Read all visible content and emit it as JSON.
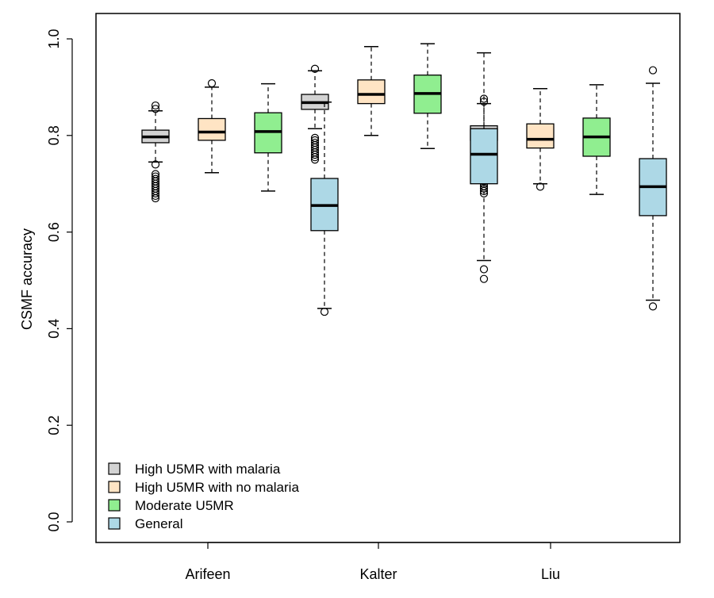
{
  "chart_data": {
    "type": "boxplot",
    "title": "",
    "xlabel": "",
    "ylabel": "CSMF accuracy",
    "ylim": [
      -0.04,
      1.04
    ],
    "yticks": [
      "0.0",
      "0.2",
      "0.4",
      "0.6",
      "0.8",
      "1.0"
    ],
    "categories": [
      "Arifeen",
      "Kalter",
      "Liu"
    ],
    "series": [
      {
        "name": "High U5MR with malaria",
        "color": "#d3d3d3",
        "boxes": [
          {
            "whisker_low": 0.745,
            "q1": 0.785,
            "median": 0.797,
            "q3": 0.811,
            "whisker_high": 0.851,
            "outliers": [
              0.67,
              0.675,
              0.68,
              0.685,
              0.69,
              0.695,
              0.7,
              0.705,
              0.71,
              0.715,
              0.72,
              0.74,
              0.855,
              0.862
            ]
          },
          {
            "whisker_low": 0.814,
            "q1": 0.854,
            "median": 0.868,
            "q3": 0.885,
            "whisker_high": 0.934,
            "outliers": [
              0.75,
              0.755,
              0.76,
              0.765,
              0.77,
              0.775,
              0.78,
              0.785,
              0.79,
              0.795,
              0.938
            ]
          },
          {
            "whisker_low": 0.747,
            "q1": 0.79,
            "median": 0.805,
            "q3": 0.82,
            "whisker_high": 0.866,
            "outliers": [
              0.68,
              0.685,
              0.69,
              0.695,
              0.7,
              0.705,
              0.71,
              0.715,
              0.72,
              0.73,
              0.74,
              0.87,
              0.876
            ]
          }
        ]
      },
      {
        "name": "High U5MR with no malaria",
        "color": "#ffe4c4",
        "boxes": [
          {
            "whisker_low": 0.723,
            "q1": 0.79,
            "median": 0.807,
            "q3": 0.835,
            "whisker_high": 0.9,
            "outliers": [
              0.908
            ]
          },
          {
            "whisker_low": 0.8,
            "q1": 0.866,
            "median": 0.885,
            "q3": 0.915,
            "whisker_high": 0.984,
            "outliers": []
          },
          {
            "whisker_low": 0.7,
            "q1": 0.774,
            "median": 0.792,
            "q3": 0.824,
            "whisker_high": 0.897,
            "outliers": [
              0.694
            ]
          }
        ]
      },
      {
        "name": "Moderate U5MR",
        "color": "#90ee90",
        "boxes": [
          {
            "whisker_low": 0.685,
            "q1": 0.764,
            "median": 0.808,
            "q3": 0.847,
            "whisker_high": 0.907,
            "outliers": []
          },
          {
            "whisker_low": 0.773,
            "q1": 0.846,
            "median": 0.887,
            "q3": 0.925,
            "whisker_high": 0.99,
            "outliers": []
          },
          {
            "whisker_low": 0.678,
            "q1": 0.757,
            "median": 0.797,
            "q3": 0.836,
            "whisker_high": 0.905,
            "outliers": []
          }
        ]
      },
      {
        "name": "General",
        "color": "#add8e6",
        "boxes": [
          {
            "whisker_low": 0.442,
            "q1": 0.603,
            "median": 0.655,
            "q3": 0.711,
            "whisker_high": 0.869,
            "outliers": [
              0.435
            ]
          },
          {
            "whisker_low": 0.541,
            "q1": 0.7,
            "median": 0.761,
            "q3": 0.814,
            "whisker_high": 0.971,
            "outliers": [
              0.503,
              0.523
            ]
          },
          {
            "whisker_low": 0.459,
            "q1": 0.634,
            "median": 0.694,
            "q3": 0.752,
            "whisker_high": 0.908,
            "outliers": [
              0.446,
              0.935
            ]
          }
        ]
      }
    ],
    "legend_position": "bottom-left",
    "grid": false
  }
}
